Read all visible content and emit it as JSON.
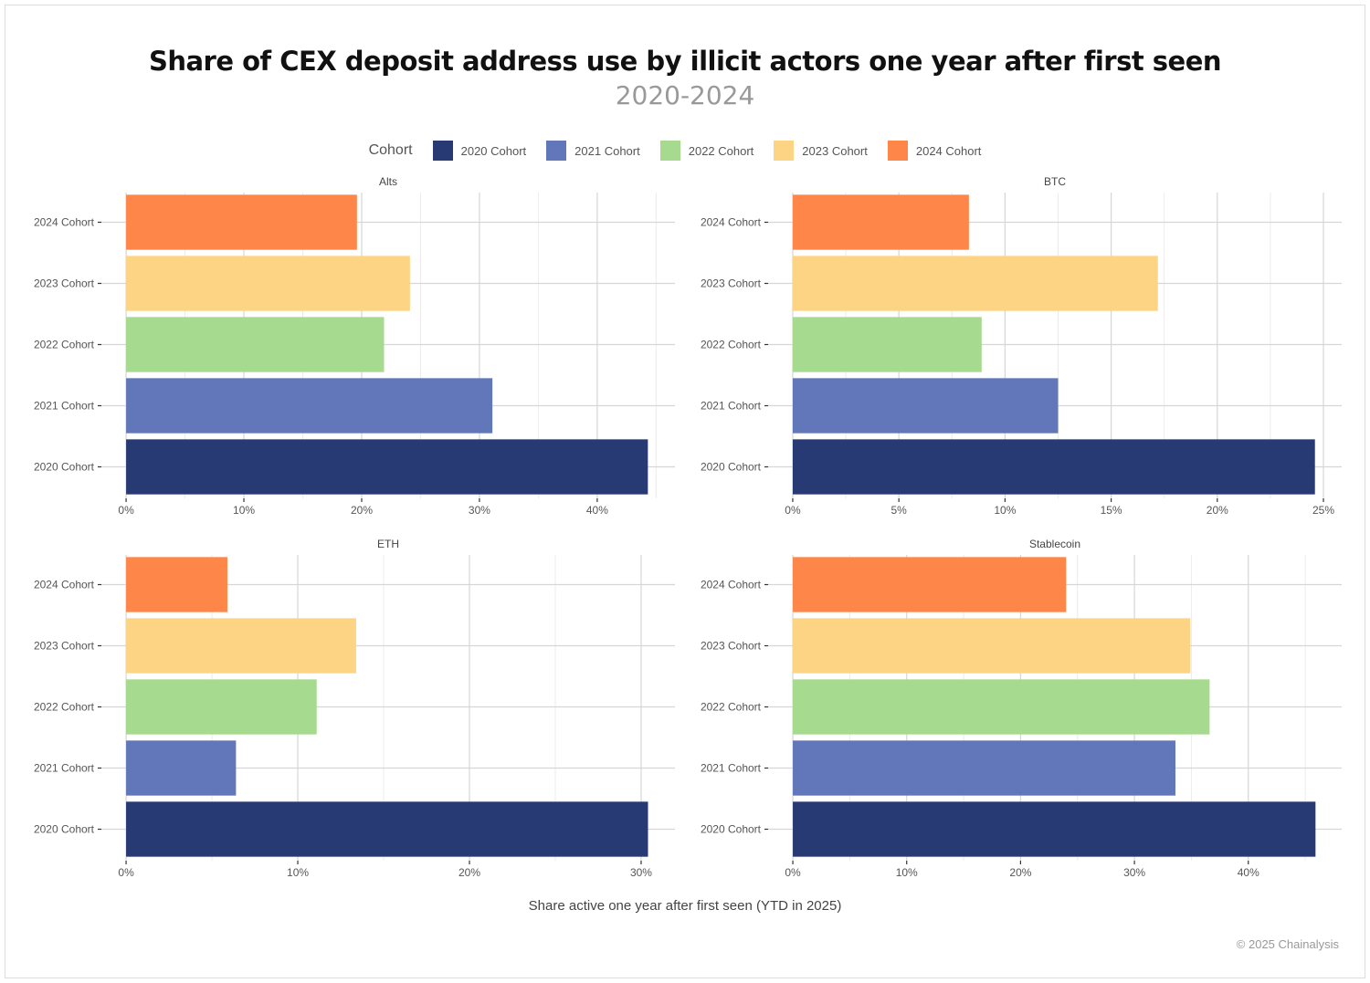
{
  "chart_data": {
    "type": "bar",
    "orientation": "horizontal",
    "title": "Share of CEX deposit address use by illicit actors one year after first seen",
    "subtitle": "2020-2024",
    "xlabel": "Share active one year after first seen (YTD in 2025)",
    "ylabel": "",
    "grid": true,
    "legend": {
      "title": "Cohort",
      "placement": "top"
    },
    "categories": [
      "2020 Cohort",
      "2021 Cohort",
      "2022 Cohort",
      "2023 Cohort",
      "2024 Cohort"
    ],
    "colors": [
      "#283a73",
      "#6177ba",
      "#a6da8e",
      "#fdd484",
      "#fe8649"
    ],
    "panels": [
      {
        "name": "Alts",
        "values": [
          44.3,
          31.1,
          21.9,
          24.1,
          19.6
        ],
        "ticks": [
          0,
          10,
          20,
          30,
          40
        ],
        "xlim": [
          -2.1,
          46.6
        ]
      },
      {
        "name": "BTC",
        "values": [
          24.6,
          12.5,
          8.9,
          17.2,
          8.3
        ],
        "ticks": [
          0,
          5,
          10,
          15,
          20,
          25
        ],
        "xlim": [
          -1.16,
          25.86
        ]
      },
      {
        "name": "ETH",
        "values": [
          30.4,
          6.4,
          11.1,
          13.4,
          5.9
        ],
        "ticks": [
          0,
          10,
          20,
          30
        ],
        "xlim": [
          -1.44,
          31.97
        ]
      },
      {
        "name": "Stablecoin",
        "values": [
          45.9,
          33.6,
          36.6,
          34.9,
          24.0
        ],
        "ticks": [
          0,
          10,
          20,
          30,
          40
        ],
        "xlim": [
          -2.17,
          48.2
        ]
      }
    ],
    "tick_suffix": "%"
  },
  "credit": "© 2025 Chainalysis"
}
